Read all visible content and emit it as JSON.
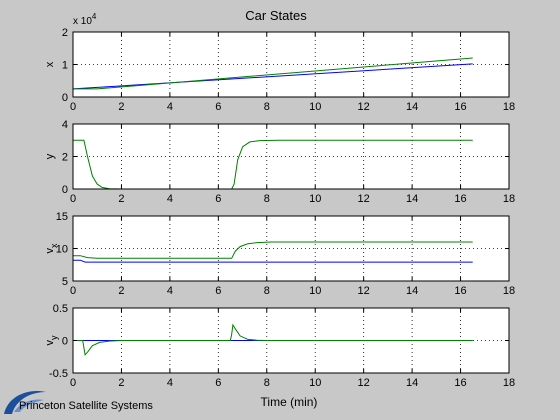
{
  "figure": {
    "title": "Car States",
    "xlabel": "Time (min)",
    "background": "#c8c8c8",
    "axes_background": "#ffffff"
  },
  "logo": {
    "text": "Princeton Satellite Systems",
    "icon": "pss-swoosh-icon",
    "color": "#1a4f9c"
  },
  "chart_data": [
    {
      "type": "line",
      "ylabel": "x",
      "exponent_label": "x 10",
      "exponent_power": "4",
      "xlim": [
        0,
        18
      ],
      "ylim": [
        0,
        2
      ],
      "xticks": [
        0,
        2,
        4,
        6,
        8,
        10,
        12,
        14,
        16,
        18
      ],
      "yticks": [
        0,
        1,
        2
      ],
      "ytick_labels": [
        "0",
        "1",
        "2"
      ],
      "grid": true,
      "series": [
        {
          "color": "#0000ff",
          "x": [
            0,
            16.5
          ],
          "y": [
            0.25,
            1.02
          ]
        },
        {
          "color": "#008000",
          "x": [
            0,
            1,
            16.5
          ],
          "y": [
            0.25,
            0.25,
            1.2
          ]
        }
      ]
    },
    {
      "type": "line",
      "ylabel": "y",
      "xlim": [
        0,
        18
      ],
      "ylim": [
        0,
        4
      ],
      "xticks": [
        0,
        2,
        4,
        6,
        8,
        10,
        12,
        14,
        16,
        18
      ],
      "yticks": [
        0,
        2,
        4
      ],
      "ytick_labels": [
        "0",
        "2",
        "4"
      ],
      "grid": true,
      "series": [
        {
          "color": "#0000ff",
          "x": [
            0,
            16.5
          ],
          "y": [
            0,
            0
          ]
        },
        {
          "color": "#008000",
          "x": [
            0,
            0.45,
            0.6,
            0.8,
            1.0,
            1.2,
            1.5,
            2.0,
            6.55,
            6.65,
            6.8,
            7.0,
            7.3,
            7.7,
            8.5,
            16.5
          ],
          "y": [
            3.0,
            3.0,
            2.0,
            0.8,
            0.3,
            0.1,
            0.02,
            0,
            0,
            0.3,
            1.8,
            2.6,
            2.9,
            2.98,
            3.0,
            3.0
          ]
        }
      ]
    },
    {
      "type": "line",
      "ylabel": "v",
      "ylabel_sub": "x",
      "xlim": [
        0,
        18
      ],
      "ylim": [
        5,
        15
      ],
      "xticks": [
        0,
        2,
        4,
        6,
        8,
        10,
        12,
        14,
        16,
        18
      ],
      "yticks": [
        5,
        10,
        15
      ],
      "ytick_labels": [
        "5",
        "10",
        "15"
      ],
      "grid": true,
      "series": [
        {
          "color": "#0000ff",
          "x": [
            0,
            0.3,
            0.5,
            16.5
          ],
          "y": [
            8.2,
            8.2,
            7.9,
            7.9
          ]
        },
        {
          "color": "#008000",
          "x": [
            0,
            0.3,
            0.6,
            1.0,
            6.55,
            6.7,
            6.9,
            7.2,
            7.6,
            8.2,
            16.5
          ],
          "y": [
            8.9,
            8.9,
            8.6,
            8.5,
            8.5,
            9.6,
            10.3,
            10.7,
            10.9,
            11.0,
            11.0
          ]
        }
      ]
    },
    {
      "type": "line",
      "ylabel": "v",
      "ylabel_sub": "y",
      "xlim": [
        0,
        18
      ],
      "ylim": [
        -0.5,
        0.5
      ],
      "xticks": [
        0,
        2,
        4,
        6,
        8,
        10,
        12,
        14,
        16,
        18
      ],
      "yticks": [
        -0.5,
        0,
        0.5
      ],
      "ytick_labels": [
        "-0.5",
        "0",
        "0.5"
      ],
      "grid": true,
      "series": [
        {
          "color": "#0000ff",
          "x": [
            0,
            16.5
          ],
          "y": [
            0,
            0
          ]
        },
        {
          "color": "#008000",
          "x": [
            0,
            0.4,
            0.5,
            0.6,
            0.8,
            1.1,
            1.5,
            2.0,
            6.5,
            6.55,
            6.6,
            6.7,
            6.9,
            7.2,
            7.6,
            8.0,
            16.5
          ],
          "y": [
            0,
            0,
            -0.22,
            -0.18,
            -0.08,
            -0.03,
            -0.01,
            0,
            0,
            0.1,
            0.24,
            0.18,
            0.07,
            0.02,
            0.005,
            0,
            0
          ]
        }
      ]
    }
  ]
}
